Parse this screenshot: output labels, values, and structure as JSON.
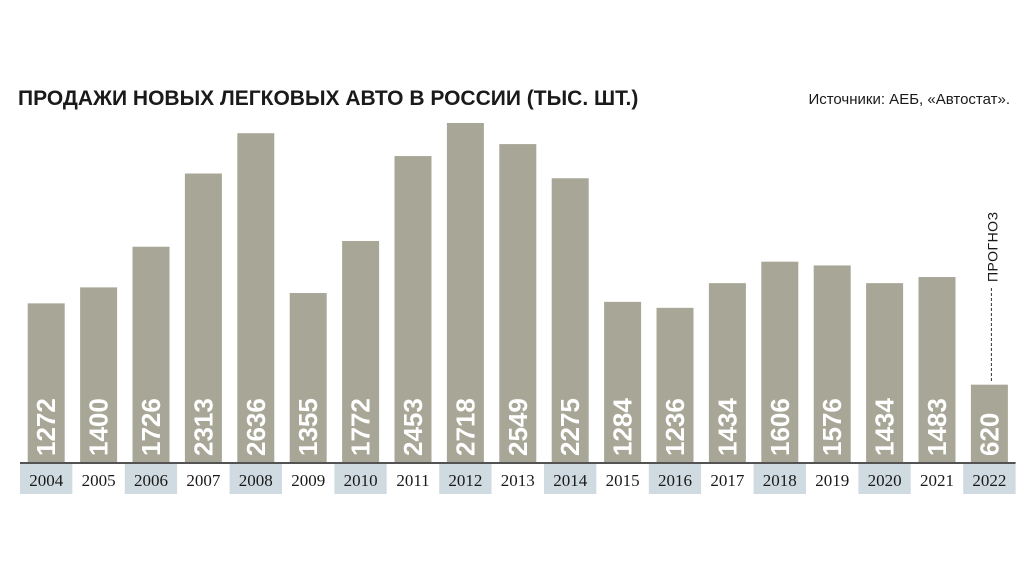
{
  "chart_data": {
    "type": "bar",
    "title": "ПРОДАЖИ НОВЫХ ЛЕГКОВЫХ АВТО В РОССИИ (ТЫС. ШТ.)",
    "source": "Источники: АЕБ, «Автостат».",
    "categories": [
      "2004",
      "2005",
      "2006",
      "2007",
      "2008",
      "2009",
      "2010",
      "2011",
      "2012",
      "2013",
      "2014",
      "2015",
      "2016",
      "2017",
      "2018",
      "2019",
      "2020",
      "2021",
      "2022"
    ],
    "values": [
      1272,
      1400,
      1726,
      2313,
      2636,
      1355,
      1772,
      2453,
      2718,
      2549,
      2275,
      1284,
      1236,
      1434,
      1606,
      1576,
      1434,
      1483,
      620
    ],
    "annotation": "ПРОГНОЗ",
    "annotation_category": "2022",
    "colors": {
      "bar": "#a8a797",
      "label": "#ffffff",
      "band": "#cfdae1"
    },
    "ylim": [
      0,
      2718
    ]
  }
}
